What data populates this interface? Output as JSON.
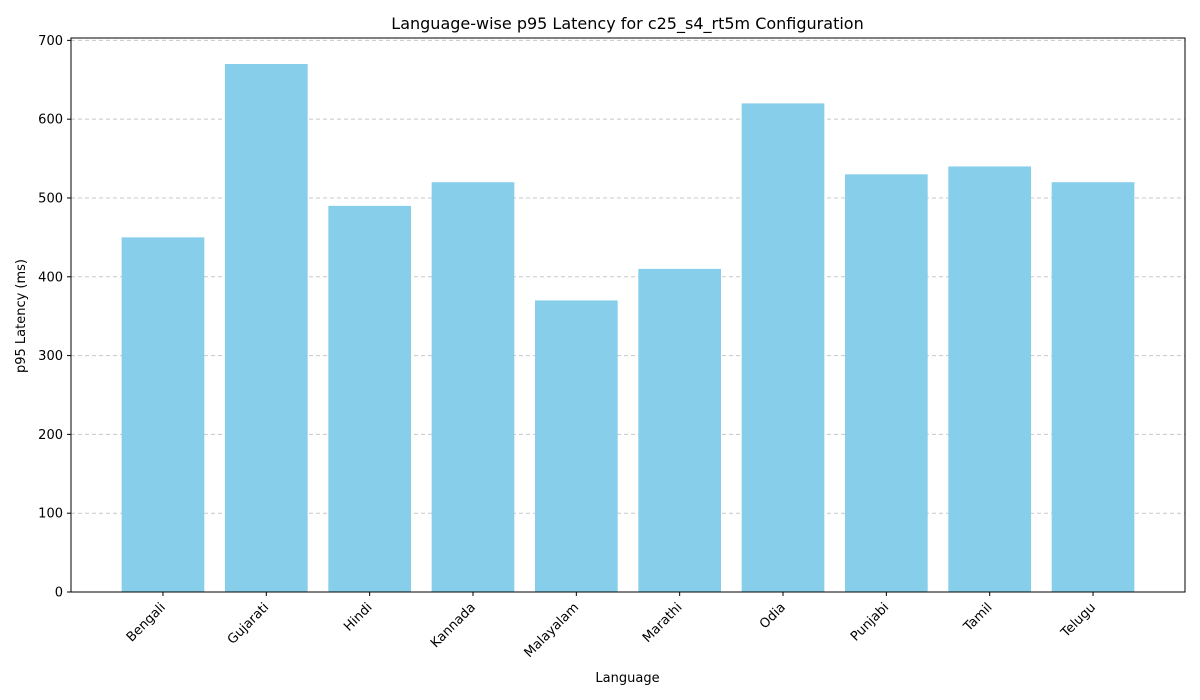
{
  "chart_data": {
    "type": "bar",
    "title": "Language-wise p95 Latency for c25_s4_rt5m Configuration",
    "xlabel": "Language",
    "ylabel": "p95 Latency (ms)",
    "categories": [
      "Bengali",
      "Gujarati",
      "Hindi",
      "Kannada",
      "Malayalam",
      "Marathi",
      "Odia",
      "Punjabi",
      "Tamil",
      "Telugu"
    ],
    "values": [
      450,
      670,
      490,
      520,
      370,
      410,
      620,
      530,
      540,
      520
    ],
    "ylim": [
      0,
      703
    ],
    "yticks": [
      0,
      100,
      200,
      300,
      400,
      500,
      600,
      700
    ],
    "grid": "y-dashed",
    "bar_color": "#87ceeb",
    "grid_color": "#c8c8c8",
    "x_tick_rotation_deg": 45
  }
}
